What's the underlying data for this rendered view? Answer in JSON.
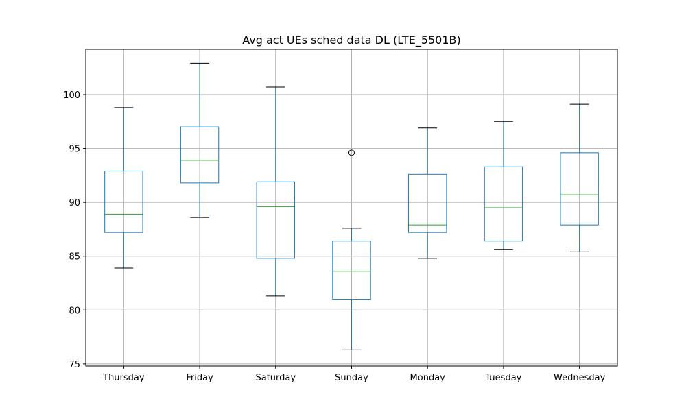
{
  "chart_data": {
    "type": "box",
    "title": "Avg act UEs sched data DL (LTE_5501B)",
    "xlabel": "",
    "ylabel": "",
    "ylim": [
      74.8,
      104.2
    ],
    "yticks": [
      75,
      80,
      85,
      90,
      95,
      100
    ],
    "grid": true,
    "legend": "none",
    "colors": {
      "box": "#1f77b4",
      "median": "#2ca02c",
      "whisker_cap": "#000000",
      "grid": "#b0b0b0"
    },
    "categories": [
      "Thursday",
      "Friday",
      "Saturday",
      "Sunday",
      "Monday",
      "Tuesday",
      "Wednesday"
    ],
    "boxes": [
      {
        "category": "Thursday",
        "whislo": 83.9,
        "q1": 87.2,
        "med": 88.9,
        "q3": 92.9,
        "whishi": 98.8,
        "fliers": []
      },
      {
        "category": "Friday",
        "whislo": 88.6,
        "q1": 91.8,
        "med": 93.9,
        "q3": 97.0,
        "whishi": 102.9,
        "fliers": []
      },
      {
        "category": "Saturday",
        "whislo": 81.3,
        "q1": 84.8,
        "med": 89.6,
        "q3": 91.9,
        "whishi": 100.7,
        "fliers": []
      },
      {
        "category": "Sunday",
        "whislo": 76.3,
        "q1": 81.0,
        "med": 83.6,
        "q3": 86.4,
        "whishi": 87.6,
        "fliers": [
          94.6
        ]
      },
      {
        "category": "Monday",
        "whislo": 84.8,
        "q1": 87.2,
        "med": 87.9,
        "q3": 92.6,
        "whishi": 96.9,
        "fliers": []
      },
      {
        "category": "Tuesday",
        "whislo": 85.6,
        "q1": 86.4,
        "med": 89.5,
        "q3": 93.3,
        "whishi": 97.5,
        "fliers": []
      },
      {
        "category": "Wednesday",
        "whislo": 85.4,
        "q1": 87.9,
        "med": 90.7,
        "q3": 94.6,
        "whishi": 99.1,
        "fliers": []
      }
    ]
  }
}
